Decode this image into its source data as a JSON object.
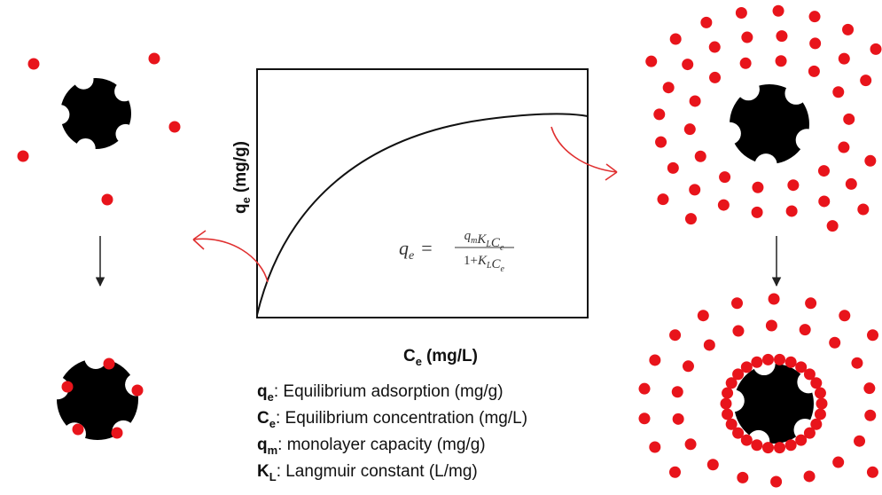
{
  "plot": {
    "y_label": {
      "symbol": "q",
      "subscript": "e",
      "unit": "(mg/g)"
    },
    "x_label": {
      "symbol": "C",
      "subscript": "e",
      "unit": "(mg/L)"
    },
    "equation": {
      "lhs": {
        "symbol": "q",
        "subscript": "e"
      },
      "relation": "=",
      "numerator": [
        {
          "symbol": "q",
          "subscript": "m"
        },
        {
          "symbol": "K",
          "subscript": "L"
        },
        {
          "symbol": "C",
          "subscript": "e"
        }
      ],
      "denominator_prefix": "1+",
      "denominator": [
        {
          "symbol": "K",
          "subscript": "L"
        },
        {
          "symbol": "C",
          "subscript": "e"
        }
      ]
    }
  },
  "legend": [
    {
      "symbol": "q",
      "subscript": "e",
      "description": ": Equilibrium adsorption (mg/g)"
    },
    {
      "symbol": "C",
      "subscript": "e",
      "description": ": Equilibrium concentration (mg/L)"
    },
    {
      "symbol": "q",
      "subscript": "m",
      "description": ": monolayer capacity (mg/g)"
    },
    {
      "symbol": "K",
      "subscript": "L",
      "description": ":  Langmuir constant (L/mg)"
    }
  ]
}
